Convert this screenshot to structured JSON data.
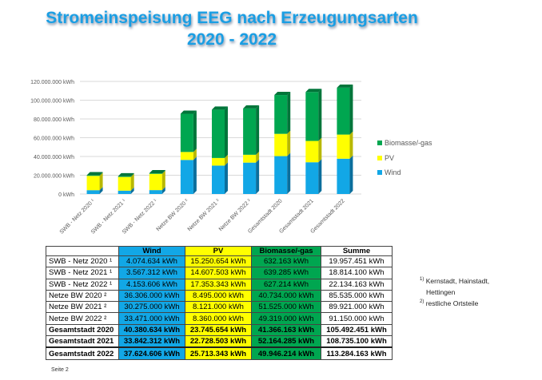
{
  "title_line1": "Stromeinspeisung EEG nach Erzeugungsarten",
  "title_line2": "2020 - 2022",
  "chart_data": {
    "type": "bar",
    "stacked": true,
    "categories": [
      "SWB - Netz 2020 ¹",
      "SWB - Netz 2021 ¹",
      "SWB - Netz 2022 ¹",
      "Netze BW 2020 ²",
      "Netze BW 2021 ²",
      "Netze BW 2022 ²",
      "Gesamtstadt 2020",
      "Gesamtstadt 2021",
      "Gesamtstadt 2022"
    ],
    "series": [
      {
        "name": "Wind",
        "color": "#12a7e6",
        "side": "#0b6e9c",
        "values": [
          4074634,
          3567312,
          4153606,
          36306000,
          30275000,
          33471000,
          40380634,
          33842312,
          37624606
        ]
      },
      {
        "name": "PV",
        "color": "#ffff00",
        "side": "#b8b800",
        "values": [
          15250654,
          14607503,
          17353343,
          8495000,
          8121000,
          8360000,
          23745654,
          22728503,
          25713343
        ]
      },
      {
        "name": "Biomasse/-gas",
        "color": "#00a650",
        "side": "#00753a",
        "values": [
          632163,
          639285,
          627214,
          40734000,
          51525000,
          49319000,
          41366163,
          52164285,
          49946214
        ]
      }
    ],
    "yticks": [
      "0 kWh",
      "20.000.000 kWh",
      "40.000.000 kWh",
      "60.000.000 kWh",
      "80.000.000 kWh",
      "100.000.000 kWh",
      "120.000.000 kWh"
    ],
    "ylim": [
      0,
      120000000
    ],
    "grid": true,
    "legend": "right",
    "legend_entries": [
      "Biomasse/-gas",
      "PV",
      "Wind"
    ]
  },
  "table": {
    "headers": [
      "Wind",
      "PV",
      "Biomasse/-gas",
      "Summe"
    ],
    "rows": [
      {
        "label": "SWB - Netz 2020 ¹",
        "wind": "4.074.634  kWh",
        "pv": "15.250.654  kWh",
        "bio": "632.163  kWh",
        "sum": "19.957.451  kWh"
      },
      {
        "label": "SWB - Netz 2021 ¹",
        "wind": "3.567.312  kWh",
        "pv": "14.607.503  kWh",
        "bio": "639.285  kWh",
        "sum": "18.814.100  kWh"
      },
      {
        "label": "SWB - Netz 2022 ¹",
        "wind": "4.153.606  kWh",
        "pv": "17.353.343  kWh",
        "bio": "627.214  kWh",
        "sum": "22.134.163  kWh"
      },
      {
        "label": "Netze BW 2020 ²",
        "wind": "36.306.000  kWh",
        "pv": "8.495.000  kWh",
        "bio": "40.734.000  kWh",
        "sum": "85.535.000  kWh"
      },
      {
        "label": "Netze BW 2021 ²",
        "wind": "30.275.000  kWh",
        "pv": "8.121.000  kWh",
        "bio": "51.525.000  kWh",
        "sum": "89.921.000  kWh"
      },
      {
        "label": "Netze BW 2022 ²",
        "wind": "33.471.000  kWh",
        "pv": "8.360.000  kWh",
        "bio": "49.319.000  kWh",
        "sum": "91.150.000  kWh"
      },
      {
        "label": "Gesamtstadt 2020",
        "wind": "40.380.634  kWh",
        "pv": "23.745.654  kWh",
        "bio": "41.366.163  kWh",
        "sum": "105.492.451  kWh"
      },
      {
        "label": "Gesamtstadt 2021",
        "wind": "33.842.312  kWh",
        "pv": "22.728.503  kWh",
        "bio": "52.164.285  kWh",
        "sum": "108.735.100  kWh"
      },
      {
        "label": "Gesamtstadt 2022",
        "wind": "37.624.606  kWh",
        "pv": "25.713.343  kWh",
        "bio": "49.946.214  kWh",
        "sum": "113.284.163  kWh"
      }
    ]
  },
  "footnotes": {
    "fn1_mark": "1)",
    "fn1_text": "Kernstadt, Hainstadt,",
    "fn1_text2": "Hettingen",
    "fn2_mark": "2)",
    "fn2_text": "restliche Ortsteile"
  },
  "page_label": "Seite 2"
}
